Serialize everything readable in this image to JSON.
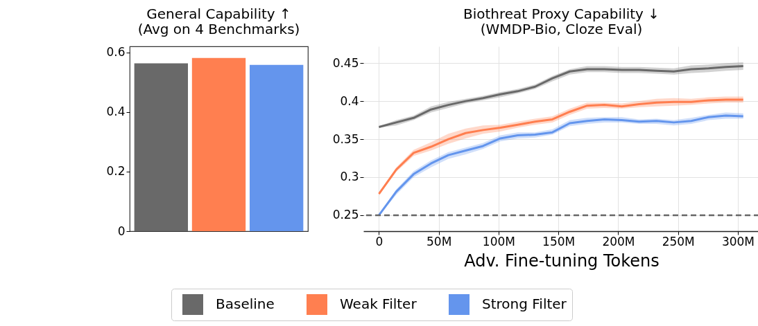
{
  "chart_data": [
    {
      "type": "bar",
      "title": "General Capability  ↑",
      "subtitle": "(Avg on 4 Benchmarks)",
      "categories": [
        null,
        null,
        null
      ],
      "values": [
        0.563,
        0.581,
        0.558
      ],
      "colors": [
        "#696969",
        "#ff7f50",
        "#6495ed"
      ],
      "ylim": [
        0,
        0.62
      ],
      "yticks": [
        {
          "value": 0,
          "label": "0"
        },
        0.2,
        0.4,
        0.6
      ],
      "grid": false
    },
    {
      "type": "line",
      "title": "Biothreat Proxy Capability  ↓",
      "subtitle": "(WMDP-Bio, Cloze Eval)",
      "xlabel": "Adv. Fine-tuning Tokens",
      "x": [
        0,
        14.5,
        29,
        43.5,
        58,
        72.5,
        87,
        101.5,
        116,
        130.5,
        145,
        159.5,
        174,
        188.5,
        203,
        217.5,
        232,
        246.5,
        261,
        275.5,
        290,
        304.5
      ],
      "series": [
        {
          "name": "Baseline",
          "color": "#696969",
          "values": [
            0.366,
            0.372,
            0.378,
            0.389,
            0.395,
            0.4,
            0.404,
            0.409,
            0.413,
            0.419,
            0.43,
            0.439,
            0.442,
            0.442,
            0.441,
            0.441,
            0.44,
            0.439,
            0.442,
            0.443,
            0.445,
            0.446
          ],
          "lower": [
            0.365,
            0.368,
            0.375,
            0.385,
            0.391,
            0.397,
            0.401,
            0.405,
            0.41,
            0.416,
            0.426,
            0.435,
            0.438,
            0.438,
            0.437,
            0.437,
            0.436,
            0.435,
            0.437,
            0.438,
            0.44,
            0.441
          ],
          "upper": [
            0.367,
            0.375,
            0.381,
            0.393,
            0.399,
            0.403,
            0.407,
            0.412,
            0.416,
            0.422,
            0.433,
            0.442,
            0.446,
            0.446,
            0.445,
            0.445,
            0.444,
            0.443,
            0.447,
            0.448,
            0.45,
            0.451
          ]
        },
        {
          "name": "Weak Filter",
          "color": "#ff7f50",
          "values": [
            0.278,
            0.31,
            0.332,
            0.34,
            0.35,
            0.358,
            0.362,
            0.365,
            0.369,
            0.373,
            0.376,
            0.386,
            0.394,
            0.395,
            0.393,
            0.396,
            0.398,
            0.399,
            0.399,
            0.401,
            0.402,
            0.402
          ],
          "lower": [
            0.277,
            0.307,
            0.328,
            0.335,
            0.344,
            0.351,
            0.357,
            0.36,
            0.365,
            0.369,
            0.372,
            0.382,
            0.39,
            0.391,
            0.39,
            0.392,
            0.393,
            0.394,
            0.395,
            0.397,
            0.398,
            0.398
          ],
          "upper": [
            0.279,
            0.313,
            0.336,
            0.346,
            0.357,
            0.364,
            0.368,
            0.369,
            0.373,
            0.377,
            0.38,
            0.39,
            0.398,
            0.398,
            0.397,
            0.4,
            0.403,
            0.404,
            0.403,
            0.405,
            0.406,
            0.406
          ]
        },
        {
          "name": "Strong Filter",
          "color": "#6495ed",
          "values": [
            0.25,
            0.281,
            0.304,
            0.318,
            0.329,
            0.335,
            0.341,
            0.351,
            0.355,
            0.356,
            0.359,
            0.371,
            0.374,
            0.376,
            0.375,
            0.373,
            0.374,
            0.372,
            0.374,
            0.379,
            0.381,
            0.38
          ],
          "lower": [
            0.249,
            0.277,
            0.3,
            0.313,
            0.324,
            0.33,
            0.337,
            0.347,
            0.351,
            0.352,
            0.356,
            0.367,
            0.37,
            0.372,
            0.372,
            0.37,
            0.37,
            0.368,
            0.37,
            0.375,
            0.377,
            0.377
          ],
          "upper": [
            0.251,
            0.284,
            0.308,
            0.322,
            0.333,
            0.339,
            0.345,
            0.355,
            0.359,
            0.359,
            0.363,
            0.375,
            0.378,
            0.379,
            0.379,
            0.376,
            0.377,
            0.375,
            0.378,
            0.382,
            0.385,
            0.384
          ]
        }
      ],
      "xlim": [
        -13,
        318
      ],
      "xticks": [
        {
          "value": 0,
          "label": "0"
        },
        {
          "value": 50,
          "label": "50M"
        },
        {
          "value": 100,
          "label": "100M"
        },
        {
          "value": 150,
          "label": "150M"
        },
        {
          "value": 200,
          "label": "200M"
        },
        {
          "value": 250,
          "label": "250M"
        },
        {
          "value": 300,
          "label": "300M"
        }
      ],
      "ylim": [
        0.229,
        0.472
      ],
      "yticks": [
        0.25,
        0.3,
        0.35,
        0.4,
        0.45
      ],
      "ref_lines": [
        {
          "axis": "y",
          "value": 0.25,
          "color": "#666666",
          "line_style": "dashed"
        }
      ],
      "grid": true,
      "legend": "bottom"
    }
  ]
}
